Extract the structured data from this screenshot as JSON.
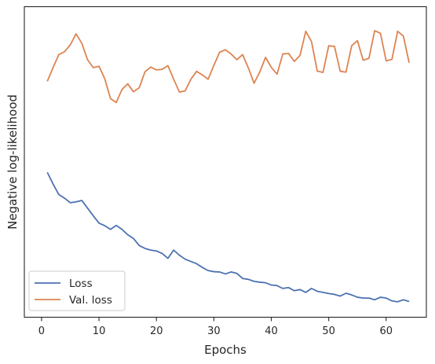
{
  "chart_data": {
    "type": "line",
    "title": "",
    "xlabel": "Epochs",
    "ylabel": "Negative log-likelihood",
    "xlim": [
      -3,
      67
    ],
    "ylim": [
      0,
      100
    ],
    "xticks": [
      0,
      10,
      20,
      30,
      40,
      50,
      60
    ],
    "yticks": [],
    "grid": false,
    "legend_position": "lower-left",
    "series": [
      {
        "name": "Loss",
        "color": "#4c72b0",
        "x": [
          1,
          2,
          3,
          4,
          5,
          6,
          7,
          8,
          9,
          10,
          11,
          12,
          13,
          14,
          15,
          16,
          17,
          18,
          19,
          20,
          21,
          22,
          23,
          24,
          25,
          26,
          27,
          28,
          29,
          30,
          31,
          32,
          33,
          34,
          35,
          36,
          37,
          38,
          39,
          40,
          41,
          42,
          43,
          44,
          45,
          46,
          47,
          48,
          49,
          50,
          51,
          52,
          53,
          54,
          55,
          56,
          57,
          58,
          59,
          60,
          61,
          62,
          63,
          64
        ],
        "y": [
          46.2,
          42.1,
          38.4,
          37.1,
          35.5,
          35.8,
          36.3,
          33.6,
          30.9,
          28.3,
          27.4,
          26.1,
          27.5,
          26.1,
          24.2,
          22.9,
          20.4,
          19.4,
          18.8,
          18.5,
          17.6,
          15.9,
          18.8,
          17.0,
          15.6,
          14.8,
          14.0,
          12.7,
          11.6,
          11.2,
          11.1,
          10.4,
          11.1,
          10.6,
          8.8,
          8.5,
          7.8,
          7.5,
          7.3,
          6.5,
          6.3,
          5.3,
          5.6,
          4.5,
          4.9,
          3.9,
          5.3,
          4.3,
          3.9,
          3.5,
          3.2,
          2.6,
          3.6,
          3.0,
          2.2,
          1.9,
          1.9,
          1.3,
          2.2,
          1.9,
          0.9,
          0.6,
          1.3,
          0.7
        ]
      },
      {
        "name": "Val. loss",
        "color": "#dd8452",
        "x": [
          1,
          2,
          3,
          4,
          5,
          6,
          7,
          8,
          9,
          10,
          11,
          12,
          13,
          14,
          15,
          16,
          17,
          18,
          19,
          20,
          21,
          22,
          23,
          24,
          25,
          26,
          27,
          28,
          29,
          30,
          31,
          32,
          33,
          34,
          35,
          36,
          37,
          38,
          39,
          40,
          41,
          42,
          43,
          44,
          45,
          46,
          47,
          48,
          49,
          50,
          51,
          52,
          53,
          54,
          55,
          56,
          57,
          58,
          59,
          60,
          61,
          62,
          63,
          64
        ],
        "y": [
          78.3,
          83.1,
          87.7,
          88.7,
          91.1,
          95.0,
          91.7,
          85.9,
          83.1,
          83.6,
          79.2,
          72.2,
          70.8,
          75.4,
          77.4,
          74.6,
          76.0,
          81.6,
          83.3,
          82.3,
          82.5,
          83.8,
          79.0,
          74.5,
          74.9,
          79.0,
          81.8,
          80.5,
          79.0,
          83.9,
          88.5,
          89.4,
          87.9,
          85.9,
          87.7,
          83.0,
          77.6,
          81.6,
          86.7,
          83.2,
          80.8,
          87.9,
          88.1,
          85.3,
          87.4,
          95.9,
          92.3,
          81.9,
          81.4,
          90.8,
          90.6,
          81.8,
          81.5,
          90.8,
          92.6,
          85.7,
          86.4,
          96.1,
          95.2,
          85.5,
          86.0,
          95.9,
          94.2,
          84.8
        ]
      }
    ]
  }
}
